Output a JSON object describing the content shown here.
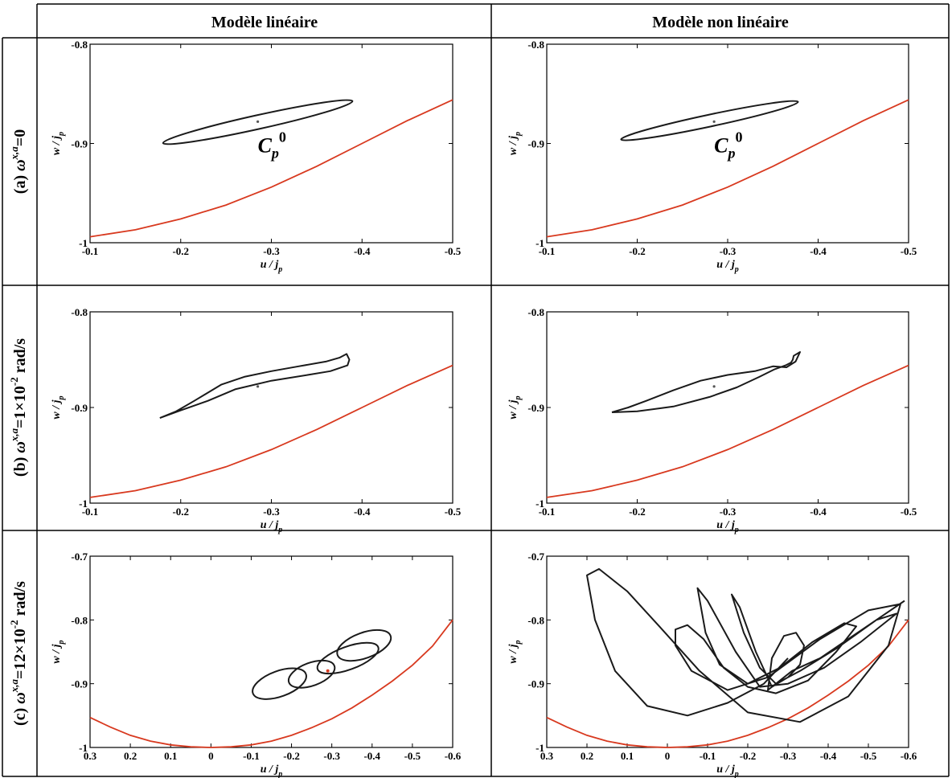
{
  "header": {
    "col_left": "Modèle linéaire",
    "col_right": "Modèle non linéaire"
  },
  "rows": [
    {
      "label_prefix": "(a) ",
      "label_omega": "ω",
      "label_sup": "x,a",
      "label_suffix": "=0",
      "label_exp": "",
      "label_unit": ""
    },
    {
      "label_prefix": "(b) ",
      "label_omega": "ω",
      "label_sup": "x,a",
      "label_suffix": "=1×10",
      "label_exp": "-2",
      "label_unit": " rad/s"
    },
    {
      "label_prefix": "(c) ",
      "label_omega": "ω",
      "label_sup": "x,a",
      "label_suffix": "=12×10",
      "label_exp": "-2",
      "label_unit": " rad/s"
    }
  ],
  "axis_labels": {
    "x_main": "u / j",
    "x_sub": "p",
    "y_main": "w / j",
    "y_sub": "p"
  },
  "annotation": {
    "main": "C",
    "sub": "p",
    "sup": "0"
  },
  "colors": {
    "trajectory": "#1a1a1a",
    "boundary": "#d8391f",
    "grid_line": "#000000"
  },
  "chart_data": [
    {
      "id": "a-linear",
      "type": "line",
      "xlim": [
        -0.1,
        -0.5
      ],
      "ylim": [
        -1,
        -0.8
      ],
      "xticks": [
        -0.1,
        -0.2,
        -0.3,
        -0.4,
        -0.5
      ],
      "xtick_labels": [
        "-0.1",
        "-0.2",
        "-0.3",
        "-0.4",
        "-0.5"
      ],
      "yticks": [
        -1,
        -0.9,
        -0.8
      ],
      "ytick_labels": [
        "-1",
        "-0.9",
        "-0.8"
      ],
      "boundary": [
        [
          -0.1,
          -0.994
        ],
        [
          -0.15,
          -0.987
        ],
        [
          -0.2,
          -0.976
        ],
        [
          -0.25,
          -0.962
        ],
        [
          -0.3,
          -0.944
        ],
        [
          -0.35,
          -0.923
        ],
        [
          -0.4,
          -0.9
        ],
        [
          -0.45,
          -0.877
        ],
        [
          -0.5,
          -0.856
        ]
      ],
      "ellipse": {
        "cx": -0.285,
        "cy": -0.8785,
        "theta": -0.035,
        "rx": 0.107,
        "ry": 0.007
      },
      "center": [
        -0.285,
        -0.878
      ],
      "show_label": true
    },
    {
      "id": "a-nonlinear",
      "type": "line",
      "xlim": [
        -0.1,
        -0.5
      ],
      "ylim": [
        -1,
        -0.8
      ],
      "xticks": [
        -0.1,
        -0.2,
        -0.3,
        -0.4,
        -0.5
      ],
      "xtick_labels": [
        "-0.1",
        "-0.2",
        "-0.3",
        "-0.4",
        "-0.5"
      ],
      "yticks": [
        -1,
        -0.9,
        -0.8
      ],
      "ytick_labels": [
        "-1",
        "-0.9",
        "-0.8"
      ],
      "boundary": [
        [
          -0.1,
          -0.994
        ],
        [
          -0.15,
          -0.987
        ],
        [
          -0.2,
          -0.976
        ],
        [
          -0.25,
          -0.962
        ],
        [
          -0.3,
          -0.944
        ],
        [
          -0.35,
          -0.923
        ],
        [
          -0.4,
          -0.9
        ],
        [
          -0.45,
          -0.877
        ],
        [
          -0.5,
          -0.856
        ]
      ],
      "ellipse": {
        "cx": -0.28,
        "cy": -0.877,
        "theta": -0.031,
        "rx": 0.1,
        "ry": 0.006
      },
      "center": [
        -0.285,
        -0.878
      ],
      "show_label": true
    },
    {
      "id": "b-linear",
      "type": "line",
      "xlim": [
        -0.1,
        -0.5
      ],
      "ylim": [
        -1,
        -0.8
      ],
      "xticks": [
        -0.1,
        -0.2,
        -0.3,
        -0.4,
        -0.5
      ],
      "xtick_labels": [
        "-0.1",
        "-0.2",
        "-0.3",
        "-0.4",
        "-0.5"
      ],
      "yticks": [
        -1,
        -0.9,
        -0.8
      ],
      "ytick_labels": [
        "-1",
        "-0.9",
        "-0.8"
      ],
      "boundary": [
        [
          -0.1,
          -0.994
        ],
        [
          -0.15,
          -0.987
        ],
        [
          -0.2,
          -0.976
        ],
        [
          -0.25,
          -0.962
        ],
        [
          -0.3,
          -0.944
        ],
        [
          -0.35,
          -0.923
        ],
        [
          -0.4,
          -0.9
        ],
        [
          -0.45,
          -0.877
        ],
        [
          -0.5,
          -0.856
        ]
      ],
      "curve": [
        [
          -0.177,
          -0.911
        ],
        [
          -0.2,
          -0.903
        ],
        [
          -0.23,
          -0.893
        ],
        [
          -0.26,
          -0.881
        ],
        [
          -0.3,
          -0.872
        ],
        [
          -0.34,
          -0.866
        ],
        [
          -0.365,
          -0.862
        ],
        [
          -0.384,
          -0.856
        ],
        [
          -0.386,
          -0.85
        ],
        [
          -0.383,
          -0.844
        ],
        [
          -0.375,
          -0.848
        ],
        [
          -0.36,
          -0.852
        ],
        [
          -0.33,
          -0.857
        ],
        [
          -0.3,
          -0.862
        ],
        [
          -0.27,
          -0.868
        ],
        [
          -0.245,
          -0.876
        ],
        [
          -0.215,
          -0.893
        ],
        [
          -0.195,
          -0.904
        ],
        [
          -0.177,
          -0.911
        ]
      ],
      "center": [
        -0.285,
        -0.878
      ],
      "show_label": false
    },
    {
      "id": "b-nonlinear",
      "type": "line",
      "xlim": [
        -0.1,
        -0.5
      ],
      "ylim": [
        -1,
        -0.8
      ],
      "xticks": [
        -0.1,
        -0.2,
        -0.3,
        -0.4,
        -0.5
      ],
      "xtick_labels": [
        "-0.1",
        "-0.2",
        "-0.3",
        "-0.4",
        "-0.5"
      ],
      "yticks": [
        -1,
        -0.9,
        -0.8
      ],
      "ytick_labels": [
        "-1",
        "-0.9",
        "-0.8"
      ],
      "boundary": [
        [
          -0.1,
          -0.994
        ],
        [
          -0.15,
          -0.987
        ],
        [
          -0.2,
          -0.976
        ],
        [
          -0.25,
          -0.962
        ],
        [
          -0.3,
          -0.944
        ],
        [
          -0.35,
          -0.923
        ],
        [
          -0.4,
          -0.9
        ],
        [
          -0.45,
          -0.877
        ],
        [
          -0.5,
          -0.856
        ]
      ],
      "curve": [
        [
          -0.172,
          -0.905
        ],
        [
          -0.2,
          -0.904
        ],
        [
          -0.24,
          -0.899
        ],
        [
          -0.28,
          -0.889
        ],
        [
          -0.31,
          -0.879
        ],
        [
          -0.335,
          -0.868
        ],
        [
          -0.352,
          -0.86
        ],
        [
          -0.364,
          -0.856
        ],
        [
          -0.37,
          -0.853
        ],
        [
          -0.372,
          -0.85
        ],
        [
          -0.373,
          -0.846
        ],
        [
          -0.38,
          -0.842
        ],
        [
          -0.375,
          -0.852
        ],
        [
          -0.365,
          -0.858
        ],
        [
          -0.35,
          -0.857
        ],
        [
          -0.33,
          -0.862
        ],
        [
          -0.3,
          -0.866
        ],
        [
          -0.27,
          -0.872
        ],
        [
          -0.24,
          -0.882
        ],
        [
          -0.21,
          -0.893
        ],
        [
          -0.19,
          -0.9
        ],
        [
          -0.172,
          -0.905
        ]
      ],
      "center": [
        -0.285,
        -0.878
      ],
      "show_label": false
    },
    {
      "id": "c-linear",
      "type": "line",
      "xlim": [
        0.3,
        -0.6
      ],
      "ylim": [
        -1,
        -0.7
      ],
      "xticks": [
        0.3,
        0.2,
        0.1,
        0,
        -0.1,
        -0.2,
        -0.3,
        -0.4,
        -0.5,
        -0.6
      ],
      "xtick_labels": [
        "0.3",
        "0.2",
        "0.1",
        "0",
        "-0.1",
        "-0.2",
        "-0.3",
        "-0.4",
        "-0.5",
        "-0.6"
      ],
      "yticks": [
        -1,
        -0.9,
        -0.8,
        -0.7
      ],
      "ytick_labels": [
        "-1",
        "-0.9",
        "-0.8",
        "-0.7"
      ],
      "boundary": [
        [
          0.3,
          -0.953
        ],
        [
          0.25,
          -0.968
        ],
        [
          0.2,
          -0.981
        ],
        [
          0.15,
          -0.99
        ],
        [
          0.1,
          -0.996
        ],
        [
          0.05,
          -0.999
        ],
        [
          0,
          -1
        ],
        [
          -0.05,
          -0.999
        ],
        [
          -0.1,
          -0.996
        ],
        [
          -0.15,
          -0.99
        ],
        [
          -0.2,
          -0.981
        ],
        [
          -0.25,
          -0.969
        ],
        [
          -0.3,
          -0.955
        ],
        [
          -0.35,
          -0.938
        ],
        [
          -0.4,
          -0.918
        ],
        [
          -0.45,
          -0.896
        ],
        [
          -0.5,
          -0.871
        ],
        [
          -0.55,
          -0.841
        ],
        [
          -0.6,
          -0.8
        ]
      ],
      "ellipses": [
        {
          "cx": -0.17,
          "cy": -0.9,
          "theta": 0.36,
          "rx": 0.07,
          "ry": 0.02
        },
        {
          "cx": -0.25,
          "cy": -0.885,
          "theta": 0.36,
          "rx": 0.06,
          "ry": 0.018
        },
        {
          "cx": -0.38,
          "cy": -0.84,
          "theta": 0.36,
          "rx": 0.07,
          "ry": 0.02
        },
        {
          "cx": -0.34,
          "cy": -0.86,
          "theta": 0.36,
          "rx": 0.08,
          "ry": 0.018
        }
      ],
      "marker": [
        -0.29,
        -0.88
      ],
      "show_label": false
    },
    {
      "id": "c-nonlinear",
      "type": "line",
      "xlim": [
        0.3,
        -0.6
      ],
      "ylim": [
        -1,
        -0.7
      ],
      "xticks": [
        0.3,
        0.2,
        0.1,
        0,
        -0.1,
        -0.2,
        -0.3,
        -0.4,
        -0.5,
        -0.6
      ],
      "xtick_labels": [
        "0.3",
        "0.2",
        "0.1",
        "0",
        "-0.1",
        "-0.2",
        "-0.3",
        "-0.4",
        "-0.5",
        "-0.6"
      ],
      "yticks": [
        -1,
        -0.9,
        -0.8,
        -0.7
      ],
      "ytick_labels": [
        "-1",
        "-0.9",
        "-0.8",
        "-0.7"
      ],
      "boundary": [
        [
          0.3,
          -0.953
        ],
        [
          0.25,
          -0.968
        ],
        [
          0.2,
          -0.981
        ],
        [
          0.15,
          -0.99
        ],
        [
          0.1,
          -0.996
        ],
        [
          0.05,
          -0.999
        ],
        [
          0,
          -1
        ],
        [
          -0.05,
          -0.999
        ],
        [
          -0.1,
          -0.996
        ],
        [
          -0.15,
          -0.99
        ],
        [
          -0.2,
          -0.981
        ],
        [
          -0.25,
          -0.969
        ],
        [
          -0.3,
          -0.955
        ],
        [
          -0.35,
          -0.938
        ],
        [
          -0.4,
          -0.918
        ],
        [
          -0.45,
          -0.896
        ],
        [
          -0.5,
          -0.871
        ],
        [
          -0.55,
          -0.841
        ],
        [
          -0.6,
          -0.8
        ]
      ],
      "curve": [
        [
          -0.3,
          -0.86
        ],
        [
          -0.24,
          -0.9
        ],
        [
          -0.15,
          -0.93
        ],
        [
          -0.05,
          -0.95
        ],
        [
          0.05,
          -0.935
        ],
        [
          0.13,
          -0.88
        ],
        [
          0.18,
          -0.8
        ],
        [
          0.2,
          -0.73
        ],
        [
          0.17,
          -0.72
        ],
        [
          0.1,
          -0.755
        ],
        [
          0.02,
          -0.81
        ],
        [
          -0.08,
          -0.88
        ],
        [
          -0.2,
          -0.945
        ],
        [
          -0.33,
          -0.96
        ],
        [
          -0.45,
          -0.92
        ],
        [
          -0.55,
          -0.84
        ],
        [
          -0.58,
          -0.775
        ],
        [
          -0.5,
          -0.785
        ],
        [
          -0.38,
          -0.83
        ],
        [
          -0.25,
          -0.89
        ],
        [
          -0.15,
          -0.91
        ],
        [
          -0.06,
          -0.88
        ],
        [
          -0.02,
          -0.84
        ],
        [
          -0.02,
          -0.815
        ],
        [
          -0.05,
          -0.808
        ],
        [
          -0.09,
          -0.83
        ],
        [
          -0.14,
          -0.875
        ],
        [
          -0.2,
          -0.905
        ],
        [
          -0.27,
          -0.915
        ],
        [
          -0.35,
          -0.895
        ],
        [
          -0.42,
          -0.85
        ],
        [
          -0.47,
          -0.81
        ],
        [
          -0.44,
          -0.805
        ],
        [
          -0.36,
          -0.835
        ],
        [
          -0.28,
          -0.875
        ],
        [
          -0.2,
          -0.9
        ],
        [
          -0.13,
          -0.87
        ],
        [
          -0.095,
          -0.82
        ],
        [
          -0.075,
          -0.75
        ],
        [
          -0.1,
          -0.77
        ],
        [
          -0.17,
          -0.85
        ],
        [
          -0.23,
          -0.905
        ],
        [
          -0.3,
          -0.9
        ],
        [
          -0.39,
          -0.875
        ],
        [
          -0.48,
          -0.835
        ],
        [
          -0.57,
          -0.79
        ],
        [
          -0.52,
          -0.8
        ],
        [
          -0.42,
          -0.845
        ],
        [
          -0.33,
          -0.88
        ],
        [
          -0.27,
          -0.9
        ],
        [
          -0.23,
          -0.875
        ],
        [
          -0.19,
          -0.82
        ],
        [
          -0.16,
          -0.76
        ],
        [
          -0.18,
          -0.78
        ],
        [
          -0.22,
          -0.85
        ],
        [
          -0.26,
          -0.905
        ],
        [
          -0.3,
          -0.89
        ],
        [
          -0.33,
          -0.87
        ],
        [
          -0.34,
          -0.84
        ],
        [
          -0.32,
          -0.82
        ],
        [
          -0.29,
          -0.825
        ],
        [
          -0.26,
          -0.86
        ],
        [
          -0.25,
          -0.91
        ],
        [
          -0.31,
          -0.88
        ],
        [
          -0.38,
          -0.86
        ],
        [
          -0.45,
          -0.83
        ],
        [
          -0.52,
          -0.8
        ],
        [
          -0.59,
          -0.77
        ]
      ],
      "show_label": false
    }
  ]
}
